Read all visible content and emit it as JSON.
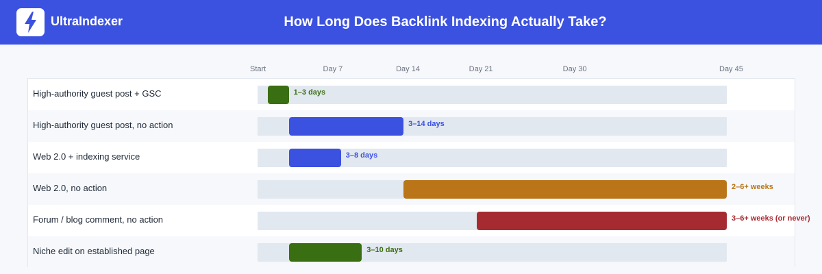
{
  "header": {
    "brand": "UltraIndexer",
    "logo_icon": "lightning-bolt-icon",
    "background": "#3b51e0"
  },
  "chart_data": {
    "type": "bar",
    "orientation": "horizontal-range",
    "title": "How Long Does Backlink Indexing Actually Take?",
    "xlim": [
      0,
      45
    ],
    "x_unit": "days",
    "ticks": [
      {
        "label": "Start",
        "value": 0
      },
      {
        "label": "Day 7",
        "value": 7
      },
      {
        "label": "Day 14",
        "value": 14
      },
      {
        "label": "Day 21",
        "value": 21
      },
      {
        "label": "Day 30",
        "value": 30
      },
      {
        "label": "Day 45",
        "value": 45
      }
    ],
    "rows": [
      {
        "category": "High-authority guest post + GSC",
        "start": 1,
        "end": 3,
        "label": "1–3 days",
        "color": "#3a6e12"
      },
      {
        "category": "High-authority guest post, no action",
        "start": 3,
        "end": 14,
        "label": "3–14 days",
        "color": "#3b51e0"
      },
      {
        "category": "Web 2.0 + indexing service",
        "start": 3,
        "end": 8,
        "label": "3–8 days",
        "color": "#3b51e0"
      },
      {
        "category": "Web 2.0, no action",
        "start": 14,
        "end": 45,
        "label": "2–6+ weeks",
        "color": "#b97517"
      },
      {
        "category": "Forum / blog comment, no action",
        "start": 21,
        "end": 45,
        "label": "3–6+ weeks (or never)",
        "color": "#a62b31"
      },
      {
        "category": "Niche edit on established page",
        "start": 3,
        "end": 10,
        "label": "3–10 days",
        "color": "#3a6e12"
      }
    ]
  }
}
